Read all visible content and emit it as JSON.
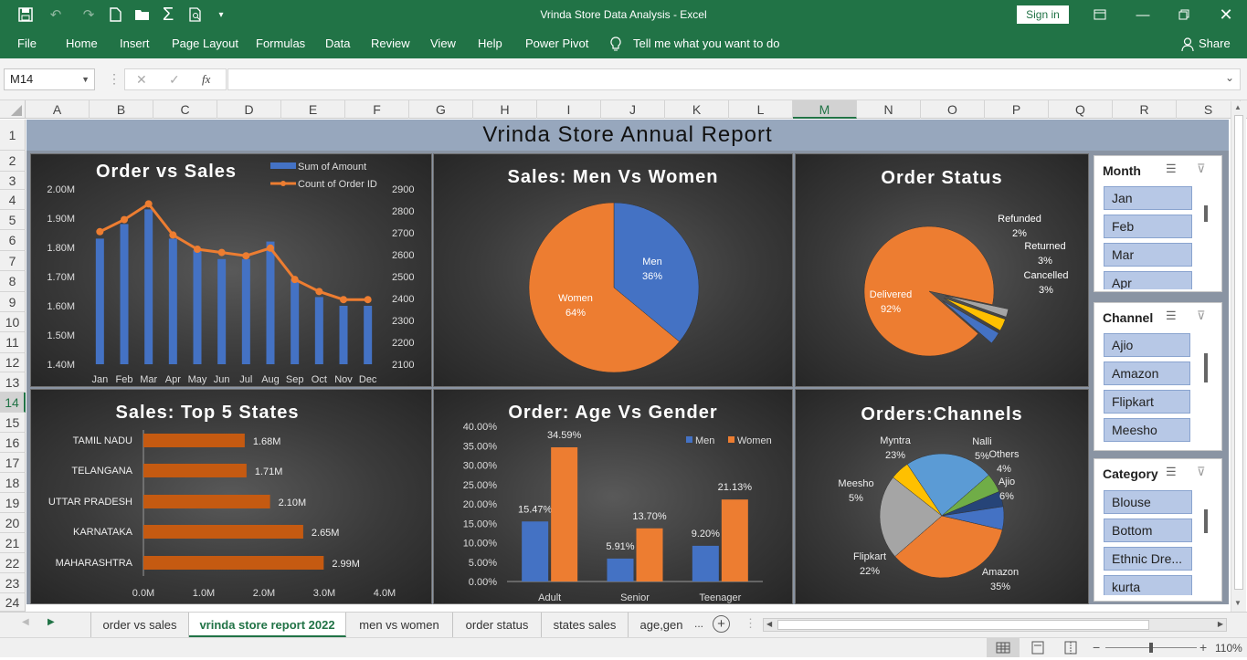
{
  "window": {
    "title": "Vrinda Store Data Analysis  -  Excel",
    "signin": "Sign in"
  },
  "ribbon": {
    "tabs": [
      "File",
      "Home",
      "Insert",
      "Page Layout",
      "Formulas",
      "Data",
      "Review",
      "View",
      "Help",
      "Power Pivot"
    ],
    "tell_me": "Tell me what you want to do",
    "share": "Share"
  },
  "formula_bar": {
    "name_box": "M14",
    "fx": "fx",
    "value": ""
  },
  "columns": [
    "A",
    "B",
    "C",
    "D",
    "E",
    "F",
    "G",
    "H",
    "I",
    "J",
    "K",
    "L",
    "M",
    "N",
    "O",
    "P",
    "Q",
    "R",
    "S"
  ],
  "rows": [
    "1",
    "2",
    "3",
    "4",
    "5",
    "6",
    "7",
    "8",
    "9",
    "10",
    "11",
    "12",
    "13",
    "14",
    "15",
    "16",
    "17",
    "18",
    "19",
    "20",
    "21",
    "22",
    "23",
    "24"
  ],
  "report_title": "Vrinda Store Annual  Report",
  "charts": {
    "order_vs_sales": {
      "title": "Order vs Sales",
      "legend": [
        "Sum of Amount",
        "Count of Order ID"
      ],
      "y_left": [
        "2.00M",
        "1.90M",
        "1.80M",
        "1.70M",
        "1.60M",
        "1.50M",
        "1.40M"
      ],
      "y_right": [
        "2900",
        "2800",
        "2700",
        "2600",
        "2500",
        "2400",
        "2300",
        "2200",
        "2100"
      ]
    },
    "men_women": {
      "title": "Sales: Men Vs Women",
      "men_label": "Men",
      "men_pct": "36%",
      "women_label": "Women",
      "women_pct": "64%"
    },
    "order_status": {
      "title": "Order Status",
      "delivered": "Delivered",
      "delivered_pct": "92%",
      "refunded": "Refunded",
      "refunded_pct": "2%",
      "returned": "Returned",
      "returned_pct": "3%",
      "cancelled": "Cancelled",
      "cancelled_pct": "3%"
    },
    "top_states": {
      "title": "Sales: Top 5 States",
      "x_ticks": [
        "0.0M",
        "1.0M",
        "2.0M",
        "3.0M",
        "4.0M"
      ]
    },
    "age_gender": {
      "title": "Order: Age Vs Gender",
      "legend": [
        "Men",
        "Women"
      ],
      "y_ticks": [
        "40.00%",
        "35.00%",
        "30.00%",
        "25.00%",
        "20.00%",
        "15.00%",
        "10.00%",
        "5.00%",
        "0.00%"
      ]
    },
    "channels": {
      "title": "Orders:Channels"
    }
  },
  "chart_data": [
    {
      "type": "bar",
      "title": "Order vs Sales",
      "categories": [
        "Jan",
        "Feb",
        "Mar",
        "Apr",
        "May",
        "Jun",
        "Jul",
        "Aug",
        "Sep",
        "Oct",
        "Nov",
        "Dec"
      ],
      "series": [
        {
          "name": "Sum of Amount",
          "type": "bar",
          "values": [
            1.83,
            1.88,
            1.93,
            1.83,
            1.79,
            1.76,
            1.76,
            1.82,
            1.69,
            1.63,
            1.6,
            1.6
          ]
        },
        {
          "name": "Count of Order ID",
          "type": "line",
          "values": [
            2705,
            2760,
            2832,
            2690,
            2625,
            2610,
            2595,
            2630,
            2487,
            2432,
            2395,
            2395
          ]
        }
      ],
      "ylim": [
        1.4,
        2.0
      ],
      "y2lim": [
        2100,
        2900
      ]
    },
    {
      "type": "pie",
      "title": "Sales: Men Vs Women",
      "categories": [
        "Men",
        "Women"
      ],
      "values": [
        36,
        64
      ]
    },
    {
      "type": "pie",
      "title": "Order Status",
      "categories": [
        "Delivered",
        "Refunded",
        "Returned",
        "Cancelled"
      ],
      "values": [
        92,
        2,
        3,
        3
      ]
    },
    {
      "type": "bar",
      "title": "Sales: Top 5 States",
      "categories": [
        "TAMIL NADU",
        "TELANGANA",
        "UTTAR PRADESH",
        "KARNATAKA",
        "MAHARASHTRA"
      ],
      "values": [
        1.68,
        1.71,
        2.1,
        2.65,
        2.99
      ],
      "labels": [
        "1.68M",
        "1.71M",
        "2.10M",
        "2.65M",
        "2.99M"
      ],
      "xlim": [
        0,
        4
      ]
    },
    {
      "type": "bar",
      "title": "Order: Age Vs Gender",
      "categories": [
        "Adult",
        "Senior",
        "Teenager"
      ],
      "series": [
        {
          "name": "Men",
          "values": [
            15.47,
            5.91,
            9.2
          ],
          "labels": [
            "15.47%",
            "5.91%",
            "9.20%"
          ]
        },
        {
          "name": "Women",
          "values": [
            34.59,
            13.7,
            21.13
          ],
          "labels": [
            "34.59%",
            "13.70%",
            "21.13%"
          ]
        }
      ],
      "ylim": [
        0,
        40
      ]
    },
    {
      "type": "pie",
      "title": "Orders:Channels",
      "categories": [
        "Amazon",
        "Flipkart",
        "Meesho",
        "Myntra",
        "Nalli",
        "Others",
        "Ajio"
      ],
      "values": [
        35,
        22,
        5,
        23,
        5,
        4,
        6
      ],
      "labels": [
        "35%",
        "22%",
        "5%",
        "23%",
        "5%",
        "4%",
        "6%"
      ]
    }
  ],
  "slicers": [
    {
      "title": "Month",
      "items": [
        "Jan",
        "Feb",
        "Mar",
        "Apr"
      ]
    },
    {
      "title": "Channel",
      "items": [
        "Ajio",
        "Amazon",
        "Flipkart",
        "Meesho"
      ]
    },
    {
      "title": "Category",
      "items": [
        "Blouse",
        "Bottom",
        "Ethnic Dre...",
        "kurta"
      ]
    }
  ],
  "sheet_tabs": [
    "order vs sales",
    "vrinda store report 2022",
    "men vs women",
    "order status",
    "states sales",
    "age,gen"
  ],
  "active_tab": "vrinda store report 2022",
  "status": {
    "zoom": "110%"
  },
  "colors": {
    "excel_green": "#217346",
    "bar_blue": "#4472c4",
    "orange": "#ed7d31",
    "state_bar": "#c55a11",
    "gray": "#a5a5a5",
    "yellow": "#ffc000",
    "green": "#70ad47",
    "navy": "#264478",
    "light_blue": "#5b9bd5"
  }
}
